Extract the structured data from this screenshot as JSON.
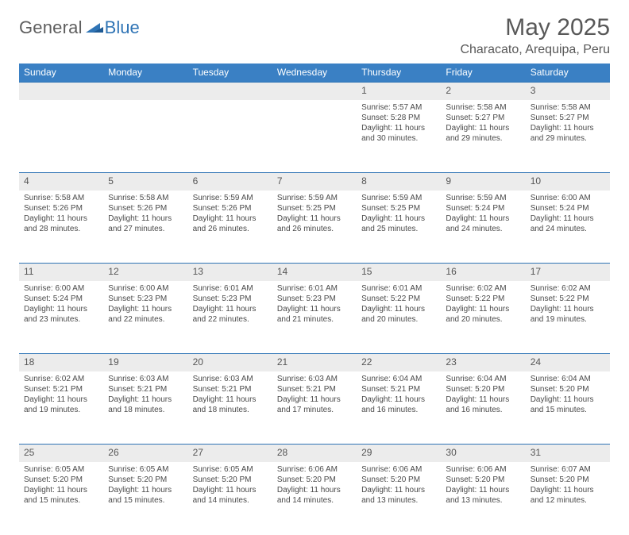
{
  "logo": {
    "text1": "General",
    "text2": "Blue",
    "text1_color": "#5e5e5e",
    "text2_color": "#2f74b5"
  },
  "title": "May 2025",
  "location": "Characato, Arequipa, Peru",
  "header_bg": "#3a80c4",
  "header_fg": "#ffffff",
  "daynum_bg": "#ececec",
  "border_color": "#2f74b5",
  "weekdays": [
    "Sunday",
    "Monday",
    "Tuesday",
    "Wednesday",
    "Thursday",
    "Friday",
    "Saturday"
  ],
  "first_weekday_index": 4,
  "days": [
    {
      "n": 1,
      "sunrise": "5:57 AM",
      "sunset": "5:28 PM",
      "daylight": "11 hours and 30 minutes."
    },
    {
      "n": 2,
      "sunrise": "5:58 AM",
      "sunset": "5:27 PM",
      "daylight": "11 hours and 29 minutes."
    },
    {
      "n": 3,
      "sunrise": "5:58 AM",
      "sunset": "5:27 PM",
      "daylight": "11 hours and 29 minutes."
    },
    {
      "n": 4,
      "sunrise": "5:58 AM",
      "sunset": "5:26 PM",
      "daylight": "11 hours and 28 minutes."
    },
    {
      "n": 5,
      "sunrise": "5:58 AM",
      "sunset": "5:26 PM",
      "daylight": "11 hours and 27 minutes."
    },
    {
      "n": 6,
      "sunrise": "5:59 AM",
      "sunset": "5:26 PM",
      "daylight": "11 hours and 26 minutes."
    },
    {
      "n": 7,
      "sunrise": "5:59 AM",
      "sunset": "5:25 PM",
      "daylight": "11 hours and 26 minutes."
    },
    {
      "n": 8,
      "sunrise": "5:59 AM",
      "sunset": "5:25 PM",
      "daylight": "11 hours and 25 minutes."
    },
    {
      "n": 9,
      "sunrise": "5:59 AM",
      "sunset": "5:24 PM",
      "daylight": "11 hours and 24 minutes."
    },
    {
      "n": 10,
      "sunrise": "6:00 AM",
      "sunset": "5:24 PM",
      "daylight": "11 hours and 24 minutes."
    },
    {
      "n": 11,
      "sunrise": "6:00 AM",
      "sunset": "5:24 PM",
      "daylight": "11 hours and 23 minutes."
    },
    {
      "n": 12,
      "sunrise": "6:00 AM",
      "sunset": "5:23 PM",
      "daylight": "11 hours and 22 minutes."
    },
    {
      "n": 13,
      "sunrise": "6:01 AM",
      "sunset": "5:23 PM",
      "daylight": "11 hours and 22 minutes."
    },
    {
      "n": 14,
      "sunrise": "6:01 AM",
      "sunset": "5:23 PM",
      "daylight": "11 hours and 21 minutes."
    },
    {
      "n": 15,
      "sunrise": "6:01 AM",
      "sunset": "5:22 PM",
      "daylight": "11 hours and 20 minutes."
    },
    {
      "n": 16,
      "sunrise": "6:02 AM",
      "sunset": "5:22 PM",
      "daylight": "11 hours and 20 minutes."
    },
    {
      "n": 17,
      "sunrise": "6:02 AM",
      "sunset": "5:22 PM",
      "daylight": "11 hours and 19 minutes."
    },
    {
      "n": 18,
      "sunrise": "6:02 AM",
      "sunset": "5:21 PM",
      "daylight": "11 hours and 19 minutes."
    },
    {
      "n": 19,
      "sunrise": "6:03 AM",
      "sunset": "5:21 PM",
      "daylight": "11 hours and 18 minutes."
    },
    {
      "n": 20,
      "sunrise": "6:03 AM",
      "sunset": "5:21 PM",
      "daylight": "11 hours and 18 minutes."
    },
    {
      "n": 21,
      "sunrise": "6:03 AM",
      "sunset": "5:21 PM",
      "daylight": "11 hours and 17 minutes."
    },
    {
      "n": 22,
      "sunrise": "6:04 AM",
      "sunset": "5:21 PM",
      "daylight": "11 hours and 16 minutes."
    },
    {
      "n": 23,
      "sunrise": "6:04 AM",
      "sunset": "5:20 PM",
      "daylight": "11 hours and 16 minutes."
    },
    {
      "n": 24,
      "sunrise": "6:04 AM",
      "sunset": "5:20 PM",
      "daylight": "11 hours and 15 minutes."
    },
    {
      "n": 25,
      "sunrise": "6:05 AM",
      "sunset": "5:20 PM",
      "daylight": "11 hours and 15 minutes."
    },
    {
      "n": 26,
      "sunrise": "6:05 AM",
      "sunset": "5:20 PM",
      "daylight": "11 hours and 15 minutes."
    },
    {
      "n": 27,
      "sunrise": "6:05 AM",
      "sunset": "5:20 PM",
      "daylight": "11 hours and 14 minutes."
    },
    {
      "n": 28,
      "sunrise": "6:06 AM",
      "sunset": "5:20 PM",
      "daylight": "11 hours and 14 minutes."
    },
    {
      "n": 29,
      "sunrise": "6:06 AM",
      "sunset": "5:20 PM",
      "daylight": "11 hours and 13 minutes."
    },
    {
      "n": 30,
      "sunrise": "6:06 AM",
      "sunset": "5:20 PM",
      "daylight": "11 hours and 13 minutes."
    },
    {
      "n": 31,
      "sunrise": "6:07 AM",
      "sunset": "5:20 PM",
      "daylight": "11 hours and 12 minutes."
    }
  ],
  "labels": {
    "sunrise": "Sunrise:",
    "sunset": "Sunset:",
    "daylight": "Daylight:"
  }
}
